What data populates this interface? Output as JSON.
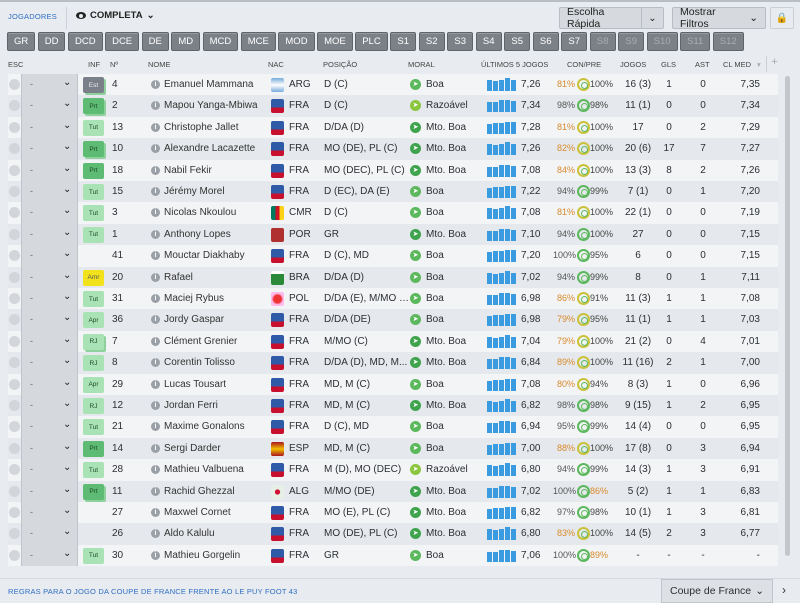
{
  "header": {
    "section": "JOGADORES",
    "view": "COMPLETA",
    "quick_pick": "Escolha Rápida",
    "filters": "Mostrar Filtros"
  },
  "positions": [
    "GR",
    "DD",
    "DCD",
    "DCE",
    "DE",
    "MD",
    "MCD",
    "MCE",
    "MOD",
    "MOE",
    "PLC",
    "S1",
    "S2",
    "S3",
    "S4",
    "S5",
    "S6",
    "S7",
    "S8",
    "S9",
    "S10",
    "S11",
    "S12"
  ],
  "positions_disabled": [
    "S8",
    "S9",
    "S10",
    "S11",
    "S12"
  ],
  "columns": {
    "esc": "ESC",
    "inf": "INF",
    "num": "Nº",
    "name": "NOME",
    "nac": "NAC",
    "pos": "POSIÇÃO",
    "moral": "MORAL",
    "last5": "ÚLTIMOS 5 JOGOS",
    "conpre": "CON/PRE",
    "jogos": "JOGOS",
    "gls": "GLS",
    "ast": "AST",
    "clmed": "CL MED"
  },
  "colors": {
    "accent": "#2f6fc4",
    "bars": "#3a9be0",
    "prt": "#5dbb73",
    "tut": "#a9e2b4",
    "amr": "#f2e21b",
    "est": "#7a808a",
    "good": "#5cb85c",
    "warn": "#d98a2b"
  },
  "rows": [
    {
      "esc": "-",
      "inf": "Est",
      "num": "4",
      "name": "Emanuel Mammana",
      "nac": "ARG",
      "flag": "argentina-flag",
      "pos": "D (C)",
      "moral": "Boa",
      "last5": "7,26",
      "con": "81%",
      "pre": "100%",
      "jogos": "16 (3)",
      "gls": "1",
      "ast": "0",
      "cl": "7,35"
    },
    {
      "esc": "-",
      "inf": "Prt",
      "num": "2",
      "name": "Mapou Yanga-Mbiwa",
      "nac": "FRA",
      "flag": "france-crest",
      "pos": "D (C)",
      "moral": "Razoável",
      "last5": "7,34",
      "con": "98%",
      "pre": "98%",
      "jogos": "11 (1)",
      "gls": "0",
      "ast": "0",
      "cl": "7,34"
    },
    {
      "esc": "-",
      "inf": "Tut",
      "num": "13",
      "name": "Christophe Jallet",
      "nac": "FRA",
      "flag": "france-crest",
      "pos": "D/DA (D)",
      "moral": "Mto. Boa",
      "last5": "7,28",
      "con": "81%",
      "pre": "100%",
      "jogos": "17",
      "gls": "0",
      "ast": "2",
      "cl": "7,29"
    },
    {
      "esc": "-",
      "inf": "Prt",
      "num": "10",
      "name": "Alexandre Lacazette",
      "nac": "FRA",
      "flag": "france-crest",
      "pos": "MO (DE), PL (C)",
      "moral": "Mto. Boa",
      "last5": "7,26",
      "con": "82%",
      "pre": "100%",
      "jogos": "20 (6)",
      "gls": "17",
      "ast": "7",
      "cl": "7,27"
    },
    {
      "esc": "-",
      "inf": "Prt",
      "num": "18",
      "name": "Nabil Fekir",
      "nac": "FRA",
      "flag": "france-crest",
      "pos": "MO (DEC), PL (C)",
      "moral": "Mto. Boa",
      "last5": "7,08",
      "con": "84%",
      "pre": "100%",
      "jogos": "13 (3)",
      "gls": "8",
      "ast": "2",
      "cl": "7,26"
    },
    {
      "esc": "-",
      "inf": "Tut",
      "num": "15",
      "name": "Jérémy Morel",
      "nac": "FRA",
      "flag": "france-crest",
      "pos": "D (EC), DA (E)",
      "moral": "Boa",
      "last5": "7,22",
      "con": "94%",
      "pre": "99%",
      "jogos": "7 (1)",
      "gls": "0",
      "ast": "1",
      "cl": "7,20"
    },
    {
      "esc": "-",
      "inf": "Tut",
      "num": "3",
      "name": "Nicolas Nkoulou",
      "nac": "CMR",
      "flag": "cameroon-crest",
      "pos": "D (C)",
      "moral": "Boa",
      "last5": "7,08",
      "con": "81%",
      "pre": "100%",
      "jogos": "22 (1)",
      "gls": "0",
      "ast": "0",
      "cl": "7,19"
    },
    {
      "esc": "-",
      "inf": "Tut",
      "num": "1",
      "name": "Anthony Lopes",
      "nac": "POR",
      "flag": "portugal-crest",
      "pos": "GR",
      "moral": "Mto. Boa",
      "last5": "7,10",
      "con": "94%",
      "pre": "100%",
      "jogos": "27",
      "gls": "0",
      "ast": "0",
      "cl": "7,15"
    },
    {
      "esc": "-",
      "inf": "",
      "num": "41",
      "name": "Mouctar Diakhaby",
      "nac": "FRA",
      "flag": "france-crest",
      "pos": "D (C), MD",
      "moral": "Boa",
      "last5": "7,20",
      "con": "100%",
      "pre": "95%",
      "jogos": "6",
      "gls": "0",
      "ast": "0",
      "cl": "7,15"
    },
    {
      "esc": "-",
      "inf": "Amr",
      "num": "20",
      "name": "Rafael",
      "nac": "BRA",
      "flag": "brazil-crest",
      "pos": "D/DA (D)",
      "moral": "Boa",
      "last5": "7,02",
      "con": "94%",
      "pre": "99%",
      "jogos": "8",
      "gls": "0",
      "ast": "1",
      "cl": "7,11"
    },
    {
      "esc": "-",
      "inf": "Tut",
      "num": "31",
      "name": "Maciej Rybus",
      "nac": "POL",
      "flag": "poland-crest",
      "pos": "D/DA (E), M/MO (E)",
      "moral": "Boa",
      "last5": "6,98",
      "con": "86%",
      "pre": "91%",
      "jogos": "11 (3)",
      "gls": "1",
      "ast": "1",
      "cl": "7,08"
    },
    {
      "esc": "-",
      "inf": "Apr",
      "num": "36",
      "name": "Jordy Gaspar",
      "nac": "FRA",
      "flag": "france-crest",
      "pos": "D/DA (DE)",
      "moral": "Boa",
      "last5": "6,98",
      "con": "79%",
      "pre": "95%",
      "jogos": "11 (1)",
      "gls": "1",
      "ast": "1",
      "cl": "7,03"
    },
    {
      "esc": "-",
      "inf": "RJ",
      "num": "7",
      "name": "Clément Grenier",
      "nac": "FRA",
      "flag": "france-crest",
      "pos": "M/MO (C)",
      "moral": "Mto. Boa",
      "last5": "7,04",
      "con": "79%",
      "pre": "100%",
      "jogos": "21 (2)",
      "gls": "0",
      "ast": "4",
      "cl": "7,01"
    },
    {
      "esc": "-",
      "inf": "RJ",
      "num": "8",
      "name": "Corentin Tolisso",
      "nac": "FRA",
      "flag": "france-crest",
      "pos": "D/DA (D), MD, M...",
      "moral": "Mto. Boa",
      "last5": "6,84",
      "con": "89%",
      "pre": "100%",
      "jogos": "11 (16)",
      "gls": "2",
      "ast": "1",
      "cl": "7,00"
    },
    {
      "esc": "-",
      "inf": "Apr",
      "num": "29",
      "name": "Lucas Tousart",
      "nac": "FRA",
      "flag": "france-crest",
      "pos": "MD, M (C)",
      "moral": "Boa",
      "last5": "7,08",
      "con": "80%",
      "pre": "94%",
      "jogos": "8 (3)",
      "gls": "1",
      "ast": "0",
      "cl": "6,96"
    },
    {
      "esc": "-",
      "inf": "RJ",
      "num": "12",
      "name": "Jordan Ferri",
      "nac": "FRA",
      "flag": "france-crest",
      "pos": "MD, M (C)",
      "moral": "Mto. Boa",
      "last5": "6,82",
      "con": "98%",
      "pre": "98%",
      "jogos": "9 (15)",
      "gls": "1",
      "ast": "2",
      "cl": "6,95"
    },
    {
      "esc": "-",
      "inf": "Tut",
      "num": "21",
      "name": "Maxime Gonalons",
      "nac": "FRA",
      "flag": "france-crest",
      "pos": "D (C), MD",
      "moral": "Boa",
      "last5": "6,94",
      "con": "95%",
      "pre": "99%",
      "jogos": "14 (4)",
      "gls": "0",
      "ast": "0",
      "cl": "6,95"
    },
    {
      "esc": "-",
      "inf": "Prt",
      "num": "14",
      "name": "Sergi Darder",
      "nac": "ESP",
      "flag": "spain-crest",
      "pos": "MD, M (C)",
      "moral": "Boa",
      "last5": "7,00",
      "con": "88%",
      "pre": "100%",
      "jogos": "17 (8)",
      "gls": "0",
      "ast": "3",
      "cl": "6,94"
    },
    {
      "esc": "-",
      "inf": "Tut",
      "num": "28",
      "name": "Mathieu Valbuena",
      "nac": "FRA",
      "flag": "france-crest",
      "pos": "M (D), MO (DEC)",
      "moral": "Razoável",
      "last5": "6,80",
      "con": "94%",
      "pre": "99%",
      "jogos": "14 (3)",
      "gls": "1",
      "ast": "3",
      "cl": "6,91"
    },
    {
      "esc": "-",
      "inf": "Prt",
      "num": "11",
      "name": "Rachid Ghezzal",
      "nac": "ALG",
      "flag": "algeria-crest",
      "pos": "M/MO (DE)",
      "moral": "Mto. Boa",
      "last5": "7,02",
      "con": "100%",
      "pre": "86%",
      "jogos": "5 (2)",
      "gls": "1",
      "ast": "1",
      "cl": "6,83"
    },
    {
      "esc": "-",
      "inf": "",
      "num": "27",
      "name": "Maxwel Cornet",
      "nac": "FRA",
      "flag": "france-crest",
      "pos": "MO (E), PL (C)",
      "moral": "Mto. Boa",
      "last5": "6,82",
      "con": "97%",
      "pre": "98%",
      "jogos": "10 (1)",
      "gls": "1",
      "ast": "3",
      "cl": "6,81"
    },
    {
      "esc": "-",
      "inf": "",
      "num": "26",
      "name": "Aldo Kalulu",
      "nac": "FRA",
      "flag": "france-crest",
      "pos": "MO (DE), PL (C)",
      "moral": "Mto. Boa",
      "last5": "6,80",
      "con": "83%",
      "pre": "100%",
      "jogos": "14 (5)",
      "gls": "2",
      "ast": "3",
      "cl": "6,77"
    },
    {
      "esc": "-",
      "inf": "Tut",
      "num": "30",
      "name": "Mathieu Gorgelin",
      "nac": "FRA",
      "flag": "france-crest",
      "pos": "GR",
      "moral": "Boa",
      "last5": "7,06",
      "con": "100%",
      "pre": "89%",
      "jogos": "-",
      "gls": "-",
      "ast": "-",
      "cl": "-"
    }
  ],
  "footer": {
    "rules_link": "REGRAS PARA O JOGO DA COUPE DE FRANCE FRENTE AO LE PUY FOOT 43",
    "competition": "Coupe de France"
  }
}
